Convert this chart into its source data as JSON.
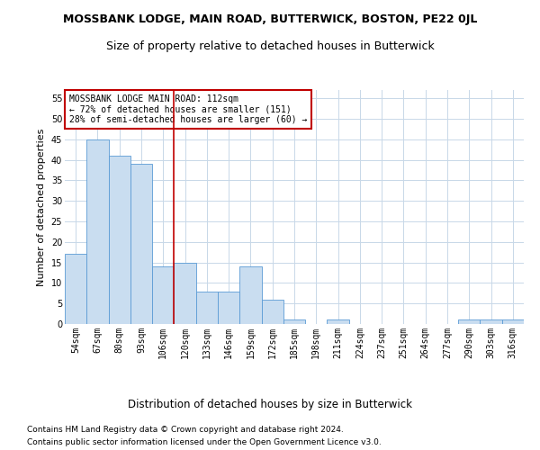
{
  "title_line1": "MOSSBANK LODGE, MAIN ROAD, BUTTERWICK, BOSTON, PE22 0JL",
  "title_line2": "Size of property relative to detached houses in Butterwick",
  "xlabel": "Distribution of detached houses by size in Butterwick",
  "ylabel": "Number of detached properties",
  "categories": [
    "54sqm",
    "67sqm",
    "80sqm",
    "93sqm",
    "106sqm",
    "120sqm",
    "133sqm",
    "146sqm",
    "159sqm",
    "172sqm",
    "185sqm",
    "198sqm",
    "211sqm",
    "224sqm",
    "237sqm",
    "251sqm",
    "264sqm",
    "277sqm",
    "290sqm",
    "303sqm",
    "316sqm"
  ],
  "values": [
    17,
    45,
    41,
    39,
    14,
    15,
    8,
    8,
    14,
    6,
    1,
    0,
    1,
    0,
    0,
    0,
    0,
    0,
    1,
    1,
    1
  ],
  "bar_color": "#c9ddf0",
  "bar_edge_color": "#5b9bd5",
  "vline_x_index": 4.5,
  "vline_color": "#c00000",
  "annotation_text": "MOSSBANK LODGE MAIN ROAD: 112sqm\n← 72% of detached houses are smaller (151)\n28% of semi-detached houses are larger (60) →",
  "annotation_box_color": "#ffffff",
  "annotation_box_edge": "#c00000",
  "ylim": [
    0,
    57
  ],
  "yticks": [
    0,
    5,
    10,
    15,
    20,
    25,
    30,
    35,
    40,
    45,
    50,
    55
  ],
  "footer_line1": "Contains HM Land Registry data © Crown copyright and database right 2024.",
  "footer_line2": "Contains public sector information licensed under the Open Government Licence v3.0.",
  "bg_color": "#ffffff",
  "grid_color": "#c8d8e8",
  "title1_fontsize": 9,
  "title2_fontsize": 9,
  "xlabel_fontsize": 8.5,
  "ylabel_fontsize": 8,
  "tick_fontsize": 7,
  "annotation_fontsize": 7,
  "footer_fontsize": 6.5
}
